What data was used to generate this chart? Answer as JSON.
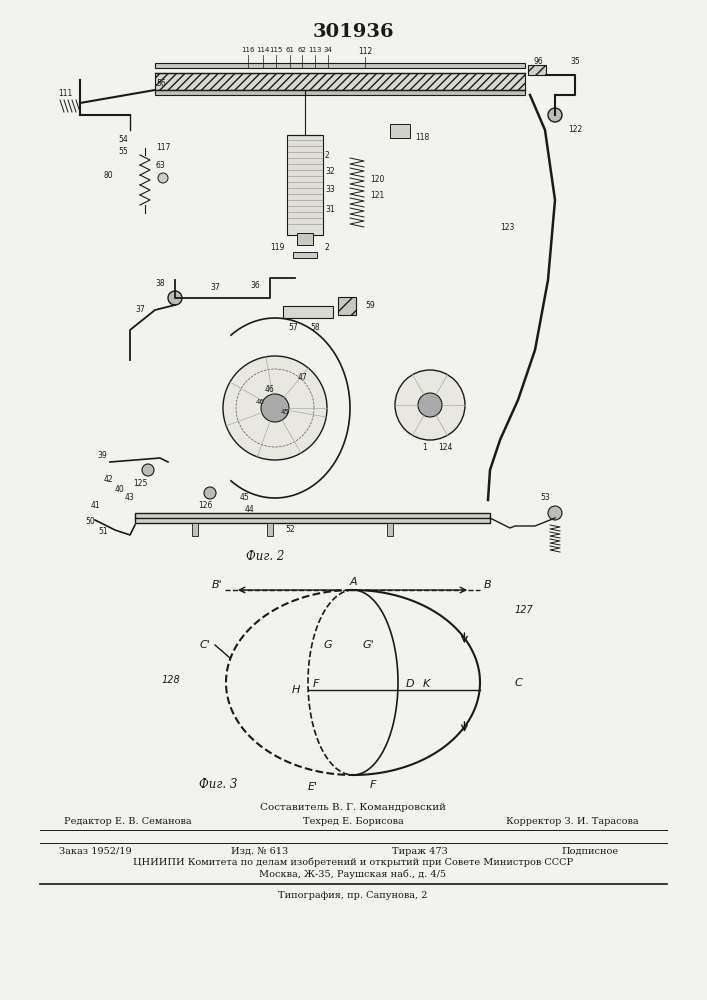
{
  "patent_number": "301936",
  "bg_color": "#f2f2ee",
  "fig2_label": "Фиг. 2",
  "fig3_label": "Фиг. 3",
  "footer_composer": "Составитель В. Г. Командровский",
  "footer_editor": "Редактор Е. В. Семанова",
  "footer_tech": "Техред Е. Борисова",
  "footer_corrector": "Корректор З. И. Тарасова",
  "footer_order": "Заказ 1952/19",
  "footer_edition": "Изд. № 613",
  "footer_circulation": "Тираж 473",
  "footer_subscription": "Подписное",
  "footer_org": "ЦНИИПИ Комитета по делам изобретений и открытий при Совете Министров СССР",
  "footer_address": "Москва, Ж-35, Раушская наб., д. 4/5",
  "footer_print": "Типография, пр. Сапунова, 2"
}
